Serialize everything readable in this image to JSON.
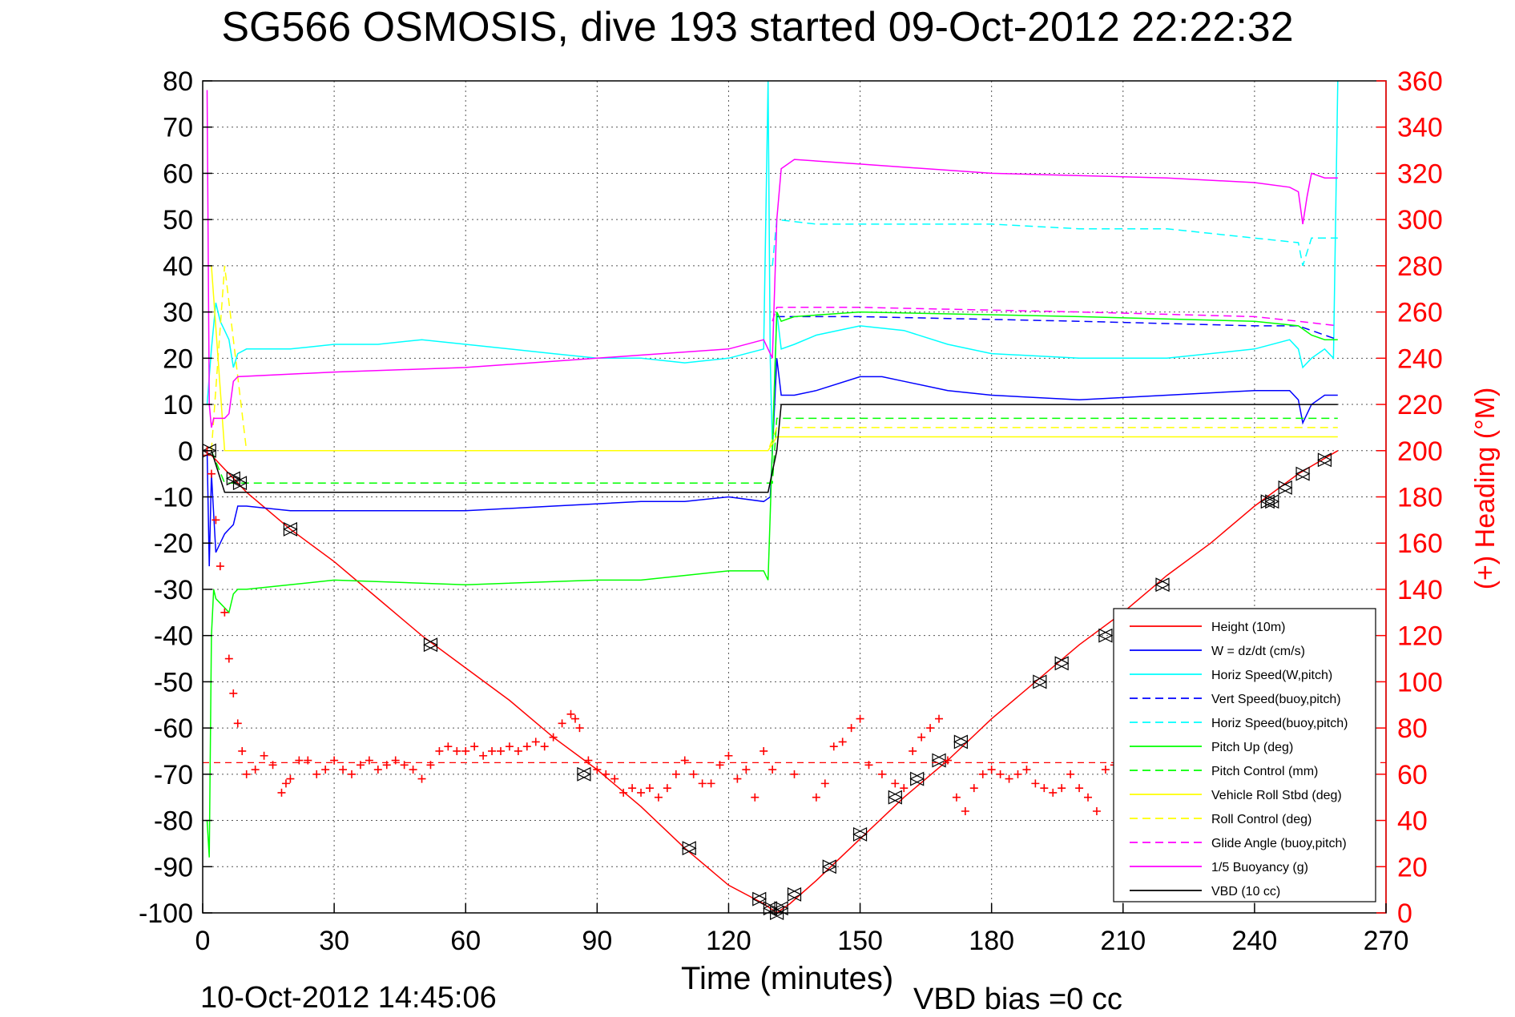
{
  "chart_data": {
    "type": "line",
    "title": "SG566 OSMOSIS, dive 193 started 09-Oct-2012 22:22:32",
    "xlabel": "Time (minutes)",
    "ylabel": "",
    "y2label": "(+) Heading (°M)",
    "xlim": [
      0,
      270
    ],
    "ylim": [
      -100,
      80
    ],
    "y2lim": [
      0,
      360
    ],
    "xticks": [
      0,
      30,
      60,
      90,
      120,
      150,
      180,
      210,
      240,
      270
    ],
    "yticks": [
      80,
      70,
      60,
      50,
      40,
      30,
      20,
      10,
      0,
      -10,
      -20,
      -30,
      -40,
      -50,
      -60,
      -70,
      -80,
      -90,
      -100
    ],
    "y2ticks": [
      360,
      340,
      320,
      300,
      280,
      260,
      240,
      220,
      200,
      180,
      160,
      140,
      120,
      100,
      80,
      60,
      40,
      20,
      0
    ],
    "grid": true,
    "legend_position": "bottom-right",
    "footer_date": "10-Oct-2012 14:45:06",
    "footer_bias": "VBD bias =0 cc",
    "colors": {
      "red": "#ff0000",
      "blue": "#0000ff",
      "cyan": "#00ffff",
      "green": "#00ff00",
      "yellow": "#ffff00",
      "magenta": "#ff00ff",
      "black": "#000000"
    },
    "series": [
      {
        "name": "Height (10m)",
        "color": "#ff0000",
        "dash": "solid",
        "x": [
          0,
          2,
          10,
          20,
          30,
          40,
          50,
          60,
          70,
          80,
          90,
          100,
          110,
          120,
          128,
          131,
          134,
          140,
          150,
          160,
          170,
          180,
          190,
          200,
          210,
          220,
          230,
          240,
          250,
          259
        ],
        "y": [
          -1,
          -1,
          -9,
          -17,
          -24,
          -32,
          -40,
          -47,
          -54,
          -62,
          -69,
          -77,
          -86,
          -94,
          -98,
          -100,
          -98,
          -93,
          -84,
          -75,
          -67,
          -58,
          -50,
          -42,
          -35,
          -27,
          -20,
          -12,
          -5,
          0
        ]
      },
      {
        "name": "W = dz/dt (cm/s)",
        "color": "#0000ff",
        "dash": "solid",
        "x": [
          1,
          1.5,
          2,
          3,
          4,
          5,
          6,
          7,
          8,
          10,
          20,
          40,
          60,
          80,
          100,
          110,
          120,
          128,
          129.5,
          131,
          132,
          135,
          140,
          150,
          155,
          160,
          170,
          180,
          200,
          220,
          240,
          248,
          250,
          251,
          253,
          256,
          259
        ],
        "y": [
          0,
          -25,
          -5,
          -22,
          -20,
          -18,
          -17,
          -16,
          -12,
          -12,
          -13,
          -13,
          -13,
          -12,
          -11,
          -11,
          -10,
          -11,
          -10,
          20,
          12,
          12,
          13,
          16,
          16,
          15,
          13,
          12,
          11,
          12,
          13,
          13,
          11,
          6,
          10,
          12,
          12
        ]
      },
      {
        "name": "Horiz Speed(W,pitch)",
        "color": "#00ffff",
        "dash": "solid",
        "x": [
          1,
          2,
          3,
          4,
          5,
          6,
          7,
          8,
          10,
          20,
          30,
          40,
          50,
          60,
          70,
          80,
          90,
          100,
          110,
          120,
          128,
          129,
          129.5,
          130,
          131,
          132,
          135,
          140,
          150,
          160,
          170,
          180,
          200,
          220,
          240,
          248,
          250,
          251,
          253,
          256,
          258,
          259
        ],
        "y": [
          10,
          22,
          32,
          28,
          26,
          24,
          18,
          21,
          22,
          22,
          23,
          23,
          24,
          23,
          22,
          21,
          20,
          20,
          19,
          20,
          22,
          80,
          20,
          0,
          30,
          22,
          23,
          25,
          27,
          26,
          23,
          21,
          20,
          20,
          22,
          24,
          22,
          18,
          20,
          22,
          20,
          80
        ]
      },
      {
        "name": "Vert Speed(buoy,pitch)",
        "color": "#0000ff",
        "dash": "dashed",
        "x": [
          131,
          135,
          150,
          200,
          240,
          250,
          253,
          259
        ],
        "y": [
          29,
          29,
          29,
          28,
          27,
          27,
          26,
          24
        ]
      },
      {
        "name": "Horiz Speed(buoy,pitch)",
        "color": "#00ffff",
        "dash": "dashed",
        "x": [
          130,
          131,
          140,
          150,
          180,
          200,
          220,
          240,
          250,
          251,
          253,
          256,
          259
        ],
        "y": [
          40,
          50,
          49,
          49,
          49,
          48,
          48,
          46,
          45,
          40,
          46,
          46,
          46
        ]
      },
      {
        "name": "Pitch Up (deg)",
        "color": "#00ff00",
        "dash": "solid",
        "x": [
          1,
          1.5,
          2,
          2.5,
          3,
          4,
          5,
          6,
          7,
          8,
          10,
          30,
          60,
          90,
          100,
          110,
          120,
          128,
          129,
          131,
          132,
          135,
          150,
          200,
          240,
          250,
          253,
          256,
          259
        ],
        "y": [
          -80,
          -88,
          -40,
          -30,
          -32,
          -33,
          -34,
          -35,
          -31,
          -30,
          -30,
          -28,
          -29,
          -28,
          -28,
          -27,
          -26,
          -26,
          -28,
          30,
          28,
          29,
          30,
          29,
          28,
          27,
          25,
          24,
          24
        ]
      },
      {
        "name": "Pitch Control (mm)",
        "color": "#00ff00",
        "dash": "dashed",
        "x": [
          2,
          5,
          10,
          60,
          128,
          130,
          131,
          259
        ],
        "y": [
          0,
          -7,
          -7,
          -7,
          -7,
          -7,
          7,
          7
        ]
      },
      {
        "name": "Vehicle Roll Stbd (deg)",
        "color": "#ffff00",
        "dash": "solid",
        "x": [
          2,
          5,
          10,
          60,
          128,
          129,
          131,
          140,
          200,
          259
        ],
        "y": [
          40,
          0,
          0,
          0,
          0,
          0,
          3,
          3,
          3,
          3
        ]
      },
      {
        "name": "Roll Control (deg)",
        "color": "#ffff00",
        "dash": "dashed",
        "x": [
          2,
          5,
          10,
          129,
          131,
          259
        ],
        "y": [
          0,
          40,
          0,
          0,
          5,
          5
        ]
      },
      {
        "name": "Glide Angle (buoy,pitch)",
        "color": "#ff00ff",
        "dash": "dashed",
        "x": [
          130,
          131,
          150,
          200,
          240,
          250,
          259
        ],
        "y": [
          28,
          31,
          31,
          30,
          29,
          28,
          27
        ]
      },
      {
        "name": "1/5 Buoyancy (g)",
        "color": "#ff00ff",
        "dash": "solid",
        "x": [
          1,
          1.5,
          2,
          2.5,
          5,
          6,
          7,
          8,
          30,
          60,
          90,
          120,
          128,
          130,
          131,
          132,
          135,
          150,
          180,
          220,
          240,
          248,
          250,
          251,
          252,
          253,
          256,
          259
        ],
        "y": [
          78,
          10,
          5,
          7,
          7,
          8,
          15,
          16,
          17,
          18,
          20,
          22,
          24,
          20,
          50,
          61,
          63,
          62,
          60,
          59,
          58,
          57,
          56,
          49,
          55,
          60,
          59,
          59
        ]
      },
      {
        "name": "VBD (10 cc)",
        "color": "#000000",
        "dash": "solid",
        "x": [
          2,
          5,
          10,
          60,
          128,
          129,
          131,
          132,
          259
        ],
        "y": [
          0,
          -9,
          -9,
          -9,
          -9,
          -9,
          0,
          10,
          10
        ]
      }
    ],
    "heading": {
      "name": "(+) Heading",
      "color": "#ff0000",
      "marker": "+",
      "reference": 65,
      "x": [
        1,
        2,
        3,
        4,
        5,
        6,
        7,
        8,
        9,
        10,
        12,
        14,
        16,
        18,
        19,
        20,
        22,
        24,
        26,
        28,
        30,
        32,
        34,
        36,
        38,
        40,
        42,
        44,
        46,
        48,
        50,
        52,
        54,
        56,
        58,
        60,
        62,
        64,
        66,
        68,
        70,
        72,
        74,
        76,
        78,
        80,
        82,
        84,
        85,
        86,
        88,
        90,
        92,
        94,
        96,
        98,
        100,
        102,
        104,
        106,
        108,
        110,
        112,
        114,
        116,
        118,
        120,
        122,
        124,
        126,
        128,
        130,
        135,
        140,
        142,
        144,
        146,
        148,
        150,
        152,
        155,
        158,
        160,
        162,
        164,
        166,
        168,
        170,
        172,
        174,
        176,
        178,
        180,
        182,
        184,
        186,
        188,
        190,
        192,
        194,
        196,
        198,
        200,
        202,
        204,
        206,
        208,
        210,
        212,
        214,
        216,
        218,
        220,
        222,
        224,
        226,
        228,
        230,
        232,
        234,
        236,
        238,
        240,
        242,
        244,
        246,
        248,
        250,
        252,
        254,
        256,
        258
      ],
      "y": [
        200,
        190,
        170,
        150,
        130,
        110,
        95,
        82,
        70,
        60,
        62,
        68,
        64,
        52,
        56,
        58,
        66,
        66,
        60,
        62,
        66,
        62,
        60,
        64,
        66,
        62,
        64,
        66,
        64,
        62,
        58,
        64,
        70,
        72,
        70,
        70,
        72,
        68,
        70,
        70,
        72,
        70,
        72,
        74,
        72,
        76,
        82,
        86,
        84,
        80,
        66,
        62,
        60,
        58,
        52,
        54,
        52,
        54,
        50,
        54,
        60,
        66,
        60,
        56,
        56,
        64,
        68,
        58,
        62,
        50,
        70,
        62,
        60,
        50,
        56,
        72,
        74,
        80,
        84,
        64,
        60,
        56,
        54,
        70,
        76,
        80,
        84,
        66,
        50,
        44,
        54,
        60,
        62,
        60,
        58,
        60,
        62,
        56,
        54,
        52,
        54,
        60,
        54,
        50,
        44,
        62,
        64,
        62,
        56,
        58,
        62,
        64,
        60,
        58,
        54,
        52,
        56,
        60,
        58,
        56,
        54,
        52,
        54,
        56,
        60,
        62,
        64,
        62,
        58,
        60,
        64,
        66
      ]
    },
    "dive_markers": {
      "x": [
        1.5,
        7,
        8.5,
        20,
        52,
        87,
        111,
        127,
        129.5,
        131,
        132,
        135,
        143,
        150,
        158,
        163,
        168,
        173,
        191,
        196,
        206,
        219,
        243,
        244,
        247,
        251,
        256
      ],
      "y": [
        0,
        -6,
        -7,
        -17,
        -42,
        -70,
        -86,
        -97,
        -99,
        -100,
        -99,
        -96,
        -90,
        -83,
        -75,
        -71,
        -67,
        -63,
        -50,
        -46,
        -40,
        -29,
        -11,
        -11,
        -8,
        -5,
        -2
      ]
    }
  },
  "legend": {
    "items": [
      {
        "label": "Height (10m)",
        "color": "#ff0000",
        "dash": "solid"
      },
      {
        "label": "W = dz/dt (cm/s)",
        "color": "#0000ff",
        "dash": "solid"
      },
      {
        "label": "Horiz Speed(W,pitch)",
        "color": "#00ffff",
        "dash": "solid"
      },
      {
        "label": "Vert Speed(buoy,pitch)",
        "color": "#0000ff",
        "dash": "dashed"
      },
      {
        "label": "Horiz Speed(buoy,pitch)",
        "color": "#00ffff",
        "dash": "dashed"
      },
      {
        "label": "Pitch Up (deg)",
        "color": "#00ff00",
        "dash": "solid"
      },
      {
        "label": "Pitch Control (mm)",
        "color": "#00ff00",
        "dash": "dashed"
      },
      {
        "label": "Vehicle Roll Stbd (deg)",
        "color": "#ffff00",
        "dash": "solid"
      },
      {
        "label": "Roll Control (deg)",
        "color": "#ffff00",
        "dash": "dashed"
      },
      {
        "label": "Glide Angle (buoy,pitch)",
        "color": "#ff00ff",
        "dash": "dashed"
      },
      {
        "label": "1/5 Buoyancy (g)",
        "color": "#ff00ff",
        "dash": "solid"
      },
      {
        "label": "VBD (10 cc)",
        "color": "#000000",
        "dash": "solid"
      }
    ]
  }
}
